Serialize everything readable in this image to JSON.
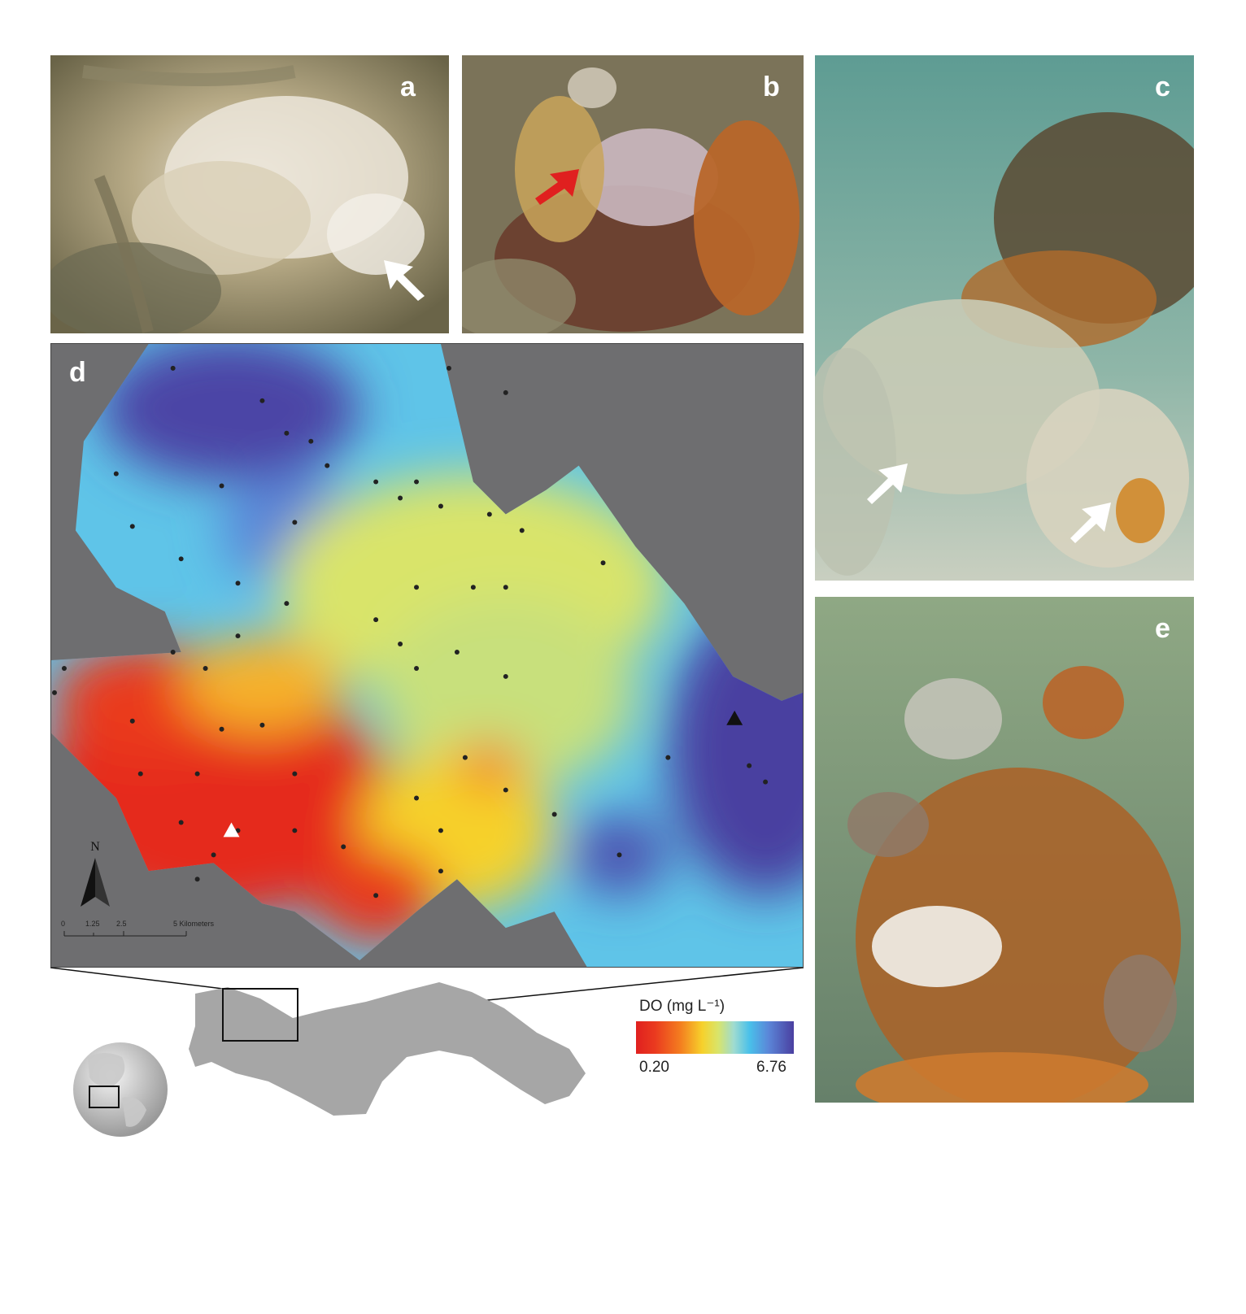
{
  "panels": {
    "a": {
      "label": "a"
    },
    "b": {
      "label": "b"
    },
    "c": {
      "label": "c"
    },
    "d": {
      "label": "d"
    },
    "e": {
      "label": "e"
    }
  },
  "map": {
    "north_label": "N",
    "scale_ticks": [
      "0",
      "1.25",
      "2.5",
      "5 Kilometers"
    ]
  },
  "legend": {
    "title": "DO (mg L⁻¹)",
    "min": "0.20",
    "max": "6.76",
    "colors": [
      "#e0201f",
      "#f47d1f",
      "#f6d12b",
      "#d9e46a",
      "#49c0ea",
      "#5b86d8",
      "#4a3fa0"
    ]
  }
}
